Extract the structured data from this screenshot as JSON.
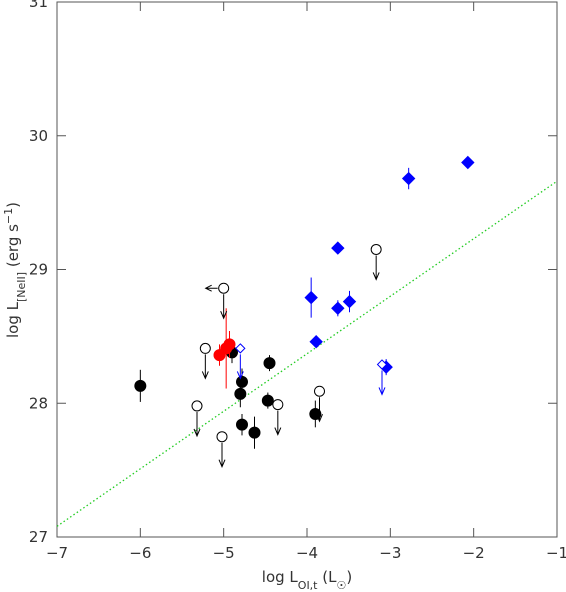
{
  "chart_data": {
    "type": "scatter",
    "xlabel": [
      {
        "text": "log L"
      },
      {
        "text": "OI,t",
        "shift": "sub"
      },
      {
        "text": " (L"
      },
      {
        "text": "☉",
        "shift": "sub"
      },
      {
        "text": ")"
      }
    ],
    "ylabel": [
      {
        "text": "log L"
      },
      {
        "text": "[NeII]",
        "shift": "sub"
      },
      {
        "text": " (erg s"
      },
      {
        "text": "−1",
        "shift": "super"
      },
      {
        "text": ")"
      }
    ],
    "xlim": [
      -7,
      -1
    ],
    "ylim": [
      27,
      31
    ],
    "xticks": [
      {
        "value": -7,
        "label": "−7"
      },
      {
        "value": -6,
        "label": "−6"
      },
      {
        "value": -5,
        "label": "−5"
      },
      {
        "value": -4,
        "label": "−4"
      },
      {
        "value": -3,
        "label": "−3"
      },
      {
        "value": -2,
        "label": "−2"
      },
      {
        "value": -1,
        "label": "−1"
      }
    ],
    "yticks": [
      27,
      28,
      29,
      30,
      31
    ],
    "series": [
      {
        "marker": "circle",
        "filled": true,
        "color": "#000000",
        "x": [
          -6.0,
          -4.9,
          -4.78,
          -4.8,
          -4.78,
          -4.63,
          -4.47,
          -4.45,
          -3.9
        ],
        "values": [
          28.13,
          28.38,
          28.16,
          28.07,
          27.84,
          27.78,
          28.02,
          28.3,
          27.92
        ],
        "errors": [
          0.12,
          0.08,
          0.1,
          0.1,
          0.08,
          0.12,
          0.06,
          0.06,
          0.1
        ]
      },
      {
        "marker": "circle",
        "filled": true,
        "color": "#ff0000",
        "x": [
          -5.05,
          -4.97,
          -4.93
        ],
        "values": [
          28.36,
          28.41,
          28.44
        ],
        "errors": [
          0.08,
          0.3,
          0.1
        ]
      },
      {
        "marker": "diamond",
        "filled": true,
        "color": "#0000ff",
        "x": [
          -3.95,
          -3.89,
          -3.63,
          -3.63,
          -3.49,
          -3.05,
          -2.78,
          -2.07
        ],
        "values": [
          28.79,
          28.46,
          28.71,
          29.16,
          28.76,
          28.27,
          29.68,
          29.8
        ],
        "errors": [
          0.15,
          0.04,
          0.06,
          0.04,
          0.08,
          0.06,
          0.08,
          0.04
        ]
      },
      {
        "marker": "diamond",
        "filled": false,
        "color": "#0000ff",
        "limit": "down",
        "x": [
          -4.8,
          -3.1
        ],
        "values": [
          28.41,
          28.29
        ]
      },
      {
        "marker": "circle",
        "filled": false,
        "color": "#000000",
        "limit": "down",
        "x": [
          -5.22,
          -5.32,
          -5.02,
          -4.35,
          -3.85,
          -3.17,
          -5.0
        ],
        "values": [
          28.41,
          27.98,
          27.75,
          27.99,
          28.09,
          29.15,
          28.86
        ],
        "left_limit": [
          false,
          false,
          false,
          false,
          false,
          false,
          true
        ]
      }
    ],
    "fit_line": {
      "color": "#22cc22",
      "style": "dotted",
      "x": [
        -7,
        -1
      ],
      "values": [
        27.08,
        29.66
      ]
    }
  }
}
